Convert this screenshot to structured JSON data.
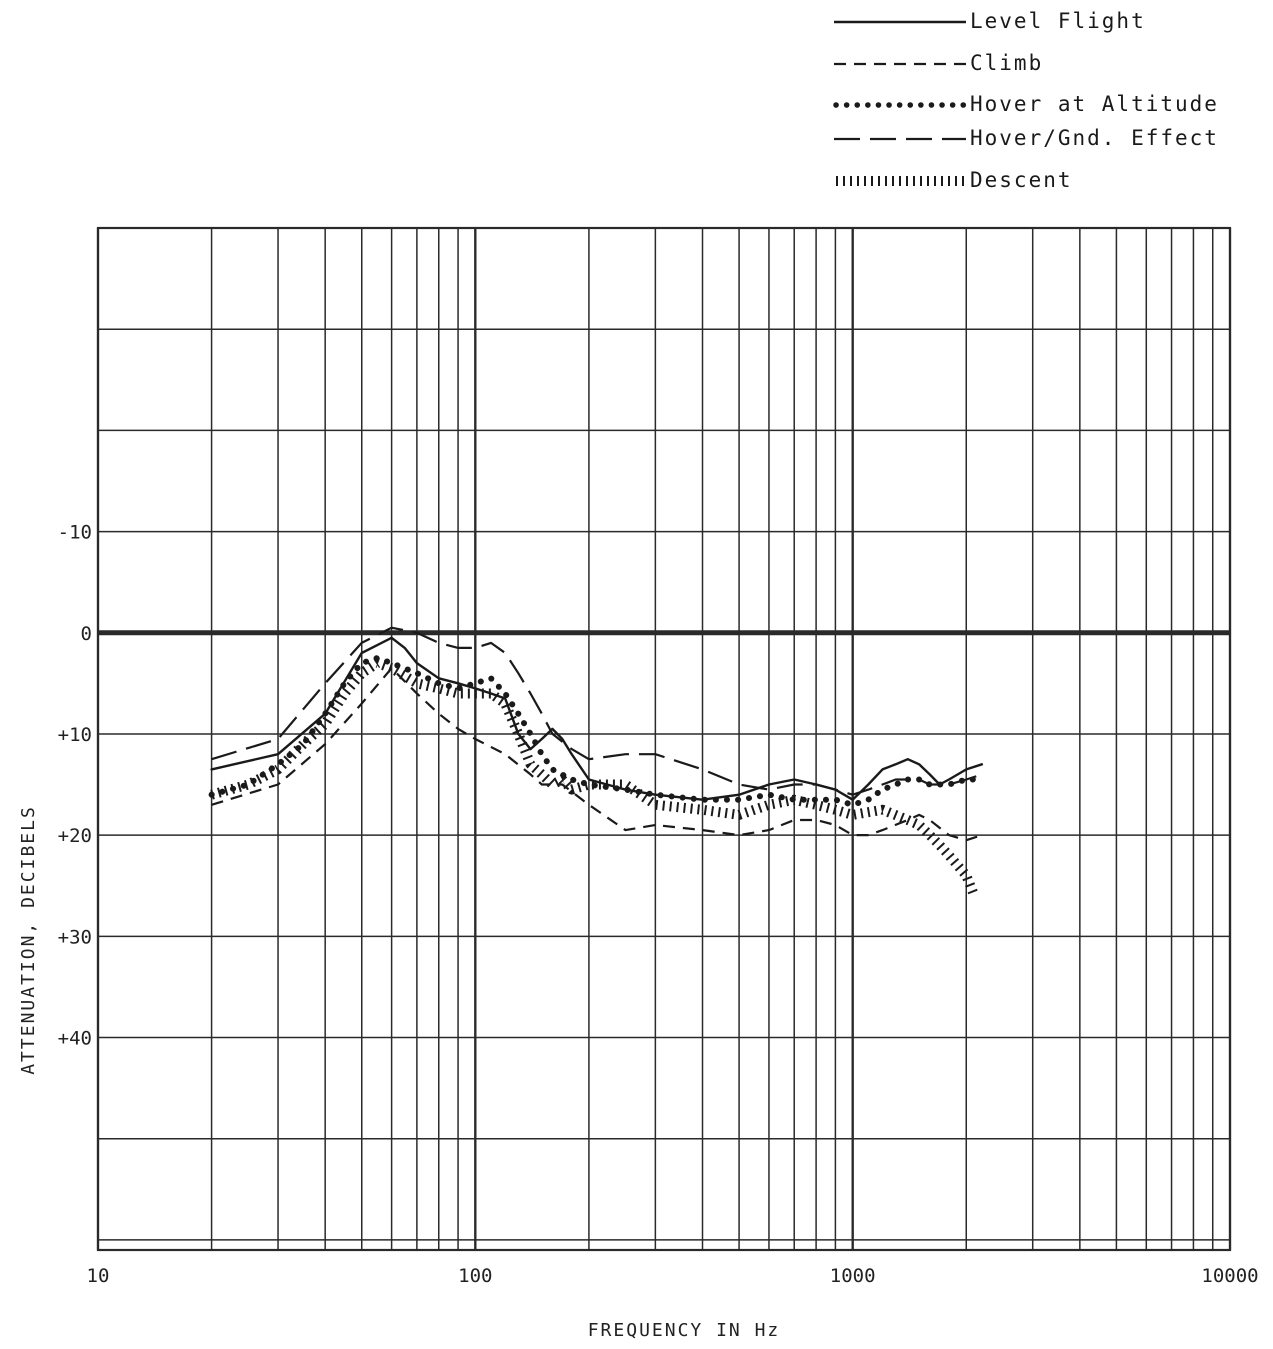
{
  "chart_data": {
    "type": "line",
    "xscale": "log",
    "xlim": [
      10,
      10000
    ],
    "ylim": [
      -40,
      61
    ],
    "y_inverted": true,
    "grid": true,
    "xlabel": "FREQUENCY IN Hz",
    "ylabel": "ATTENUATION, DECIBELS",
    "x_tick_labels": [
      {
        "value": 10,
        "label": "10"
      },
      {
        "value": 100,
        "label": "100"
      },
      {
        "value": 1000,
        "label": "1000"
      },
      {
        "value": 10000,
        "label": "10000"
      }
    ],
    "y_tick_labels": [
      {
        "value": -10,
        "label": "-10"
      },
      {
        "value": 0,
        "label": "0"
      },
      {
        "value": 10,
        "label": "+10"
      },
      {
        "value": 20,
        "label": "+20"
      },
      {
        "value": 30,
        "label": "+30"
      },
      {
        "value": 40,
        "label": "+40"
      }
    ],
    "legend_position": "top-right",
    "series": [
      {
        "name": "Level Flight",
        "style": "solid",
        "x": [
          20,
          30,
          40,
          50,
          60,
          65,
          70,
          80,
          90,
          100,
          110,
          120,
          130,
          140,
          150,
          160,
          170,
          180,
          200,
          250,
          300,
          400,
          500,
          600,
          700,
          800,
          900,
          1000,
          1100,
          1200,
          1300,
          1400,
          1500,
          1600,
          1700,
          1800,
          2000,
          2200
        ],
        "y": [
          13.5,
          12,
          8,
          2,
          0.5,
          1.5,
          3,
          4.5,
          5,
          5.5,
          6,
          6.5,
          10,
          11.5,
          10.5,
          9.5,
          10.5,
          12,
          14.5,
          15.5,
          16,
          16.5,
          16,
          15,
          14.5,
          15,
          15.5,
          16.5,
          15,
          13.5,
          13,
          12.5,
          13,
          14,
          15,
          14.5,
          13.5,
          13
        ]
      },
      {
        "name": "Climb",
        "style": "dashed",
        "x": [
          20,
          30,
          40,
          50,
          60,
          70,
          80,
          90,
          100,
          120,
          140,
          150,
          170,
          200,
          250,
          300,
          400,
          500,
          600,
          700,
          800,
          900,
          1000,
          1100,
          1200,
          1400,
          1500,
          1600,
          1800,
          2000,
          2200
        ],
        "y": [
          17,
          15,
          11,
          7,
          3.5,
          6,
          8,
          9.5,
          10.5,
          12,
          14,
          15,
          15,
          17,
          19.5,
          19,
          19.5,
          20,
          19.5,
          18.5,
          18.5,
          19,
          20,
          20,
          19.5,
          18.5,
          18,
          18.5,
          20,
          20.5,
          20
        ]
      },
      {
        "name": "Hover at Altitude",
        "style": "dotted",
        "x": [
          20,
          25,
          30,
          35,
          40,
          45,
          50,
          55,
          60,
          70,
          80,
          90,
          100,
          110,
          120,
          130,
          140,
          150,
          160,
          180,
          200,
          250,
          300,
          400,
          500,
          600,
          700,
          800,
          900,
          1000,
          1100,
          1200,
          1300,
          1400,
          1500,
          1600,
          1700,
          1800,
          2000,
          2200
        ],
        "y": [
          16,
          15,
          13,
          11,
          8,
          5,
          3,
          2.5,
          3,
          4,
          5,
          5.5,
          5,
          4.5,
          6,
          8,
          10,
          12,
          13.5,
          14.5,
          15,
          15.5,
          16,
          16.5,
          16.5,
          16,
          16.5,
          16.5,
          16.5,
          17,
          16.5,
          15.5,
          15,
          14.5,
          14.5,
          15,
          15,
          15,
          14.5,
          14.5
        ]
      },
      {
        "name": "Hover/Gnd. Effect",
        "style": "long-dash",
        "x": [
          20,
          30,
          40,
          50,
          60,
          70,
          80,
          90,
          100,
          110,
          120,
          130,
          140,
          150,
          160,
          180,
          200,
          250,
          300,
          400,
          500,
          600,
          700,
          800,
          900,
          1000,
          1100,
          1200,
          1300,
          1400,
          1500,
          1600,
          1800,
          2000,
          2200
        ],
        "y": [
          12.5,
          10.5,
          5,
          1,
          -0.5,
          0,
          1,
          1.5,
          1.5,
          1,
          2,
          4,
          6,
          8,
          10,
          11.5,
          12.5,
          12,
          12,
          13.5,
          15,
          15.5,
          15,
          15,
          15.5,
          16,
          15.5,
          15,
          14.5,
          14.5,
          14.5,
          15,
          15,
          14.5,
          14
        ]
      },
      {
        "name": "Descent",
        "style": "hatched",
        "x": [
          20,
          25,
          30,
          35,
          40,
          45,
          50,
          55,
          60,
          70,
          80,
          90,
          100,
          110,
          120,
          130,
          140,
          150,
          160,
          170,
          180,
          200,
          250,
          300,
          400,
          500,
          600,
          700,
          800,
          900,
          1000,
          1200,
          1400,
          1500,
          1600,
          1700,
          1800,
          2000,
          2100
        ],
        "y": [
          16,
          15,
          13.5,
          11,
          9,
          6,
          4,
          3,
          3.5,
          5,
          5.5,
          6,
          6,
          6,
          7,
          10,
          13,
          14,
          15,
          14.5,
          15.5,
          15,
          15,
          17,
          17.5,
          18,
          17,
          16.5,
          17,
          17.5,
          18,
          17.5,
          18.5,
          19,
          20,
          21,
          22,
          24,
          26
        ]
      }
    ]
  },
  "legend": {
    "items": [
      {
        "label": "Level Flight"
      },
      {
        "label": "Climb"
      },
      {
        "label": "Hover at Altitude"
      },
      {
        "label": "Hover/Gnd. Effect"
      },
      {
        "label": "Descent"
      }
    ]
  },
  "colors": {
    "ink": "#1a1a1a",
    "grid": "#2a2a2a",
    "background": "#ffffff"
  }
}
